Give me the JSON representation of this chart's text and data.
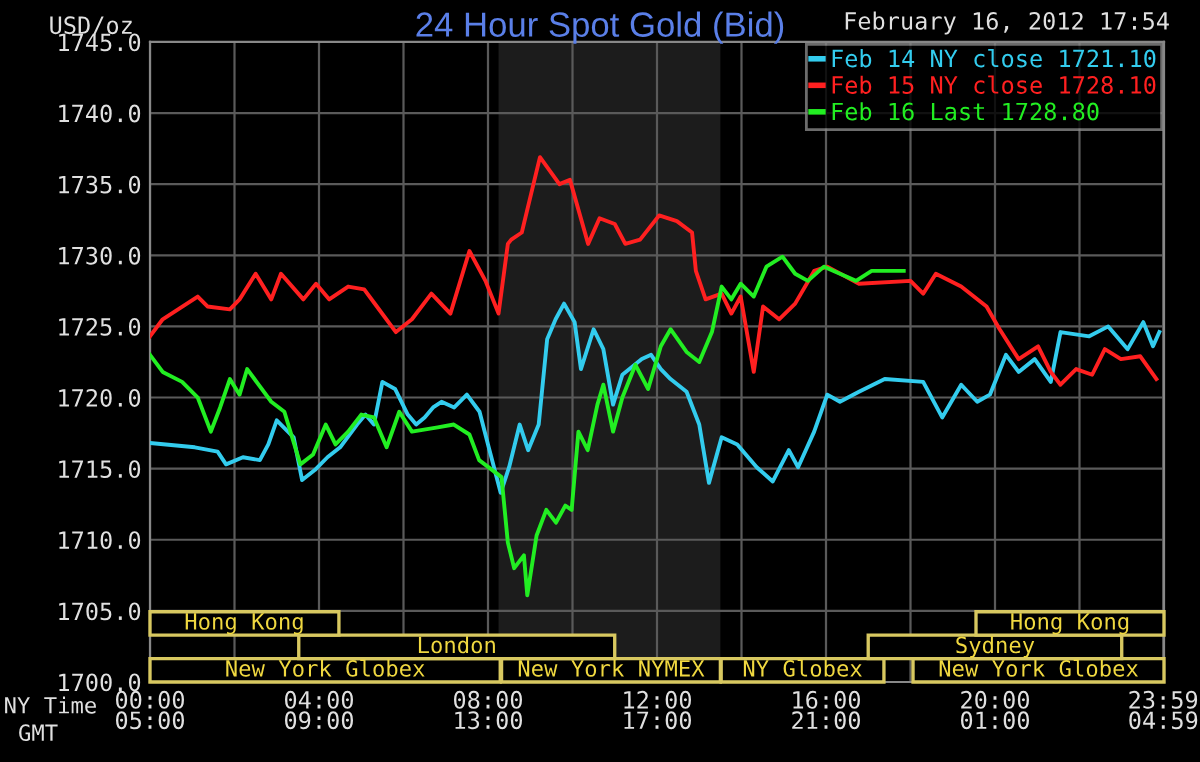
{
  "chart_data": {
    "type": "line",
    "title": "24 Hour Spot Gold (Bid)",
    "subtitle": "February 16, 2012 17:54",
    "ylabel": "USD/oz",
    "annotations": [
      "NY Time",
      "GMT",
      "New York Globex",
      "New York NYMEX",
      "NY Globex",
      "New York Globex",
      "London",
      "Sydney",
      "Hong Kong",
      "Hong Kong"
    ],
    "xlim": [
      0,
      24
    ],
    "xticks": [
      {
        "value": 0,
        "label": "00:00"
      },
      {
        "value": 2,
        "label": null
      },
      {
        "value": 4,
        "label": "04:00"
      },
      {
        "value": 6,
        "label": null
      },
      {
        "value": 8,
        "label": "08:00"
      },
      {
        "value": 10,
        "label": null
      },
      {
        "value": 12,
        "label": "12:00"
      },
      {
        "value": 14,
        "label": null
      },
      {
        "value": 16,
        "label": "16:00"
      },
      {
        "value": 18,
        "label": null
      },
      {
        "value": 20,
        "label": "20:00"
      },
      {
        "value": 22,
        "label": null
      },
      {
        "value": 23.98,
        "label": "23:59"
      }
    ],
    "x2lim": [
      "2012-02-16T05:00",
      "2012-02-17T05:00"
    ],
    "x2ticks": [
      {
        "value": "2012-02-16T05:00",
        "label": "05:00"
      },
      {
        "value": "2012-02-16T09:00",
        "label": "09:00"
      },
      {
        "value": "2012-02-16T13:00",
        "label": "13:00"
      },
      {
        "value": "2012-02-16T17:00",
        "label": "17:00"
      },
      {
        "value": "2012-02-16T21:00",
        "label": "21:00"
      },
      {
        "value": "2012-02-17T01:00",
        "label": "01:00"
      },
      {
        "value": "2012-02-17T04:59",
        "label": "04:59"
      }
    ],
    "ylim": [
      1700,
      1745
    ],
    "yticks": [
      {
        "value": 1700,
        "label": "1700.0"
      },
      {
        "value": 1705,
        "label": "1705.0"
      },
      {
        "value": 1710,
        "label": "1710.0"
      },
      {
        "value": 1715,
        "label": "1715.0"
      },
      {
        "value": 1720,
        "label": "1720.0"
      },
      {
        "value": 1725,
        "label": "1725.0"
      },
      {
        "value": 1730,
        "label": "1730.0"
      },
      {
        "value": 1735,
        "label": "1735.0"
      },
      {
        "value": 1740,
        "label": "1740.0"
      },
      {
        "value": 1745,
        "label": "1745.0"
      }
    ],
    "grid": true,
    "legend": "top right",
    "marker": "none",
    "line_style": "solid",
    "bands": [
      {
        "axis": "x",
        "from": 8.25,
        "to": 13.5,
        "color": "#1c1c1c"
      }
    ],
    "series": [
      {
        "name": "Feb 14 NY close 1721.10",
        "color": "#33ccee",
        "x": [
          0,
          1.06,
          1.6,
          1.8,
          2.2,
          2.6,
          2.8,
          3.0,
          3.4,
          3.6,
          3.9,
          4.2,
          4.5,
          4.9,
          5.1,
          5.3,
          5.5,
          5.8,
          6.1,
          6.3,
          6.5,
          6.7,
          6.9,
          7.2,
          7.5,
          7.8,
          8.0,
          8.3,
          8.5,
          8.75,
          8.95,
          9.2,
          9.4,
          9.6,
          9.8,
          10.05,
          10.2,
          10.5,
          10.73,
          10.96,
          11.18,
          11.64,
          11.86,
          12.09,
          12.32,
          12.7,
          13.0,
          13.23,
          13.53,
          13.9,
          14.36,
          14.74,
          15.12,
          15.34,
          15.72,
          16.03,
          16.33,
          16.78,
          17.39,
          18.3,
          18.75,
          19.2,
          19.58,
          19.88,
          20.26,
          20.56,
          20.94,
          21.32,
          21.55,
          22.23,
          22.68,
          23.14,
          23.51,
          23.74,
          23.89
        ],
        "values": [
          1716.8,
          1716.5,
          1716.2,
          1715.3,
          1715.8,
          1715.6,
          1716.7,
          1718.4,
          1717.2,
          1714.2,
          1714.9,
          1715.8,
          1716.5,
          1718.1,
          1718.8,
          1718.1,
          1721.1,
          1720.6,
          1718.8,
          1718.1,
          1718.6,
          1719.3,
          1719.7,
          1719.3,
          1720.2,
          1719.0,
          1716.7,
          1713.3,
          1715.1,
          1718.1,
          1716.3,
          1718.1,
          1724.1,
          1725.5,
          1726.6,
          1725.3,
          1722.0,
          1724.8,
          1723.4,
          1719.5,
          1721.6,
          1722.7,
          1723.0,
          1722.0,
          1721.3,
          1720.4,
          1718.1,
          1714.0,
          1717.2,
          1716.7,
          1715.1,
          1714.1,
          1716.3,
          1715.1,
          1717.6,
          1720.2,
          1719.7,
          1720.4,
          1721.3,
          1721.1,
          1718.6,
          1720.9,
          1719.7,
          1720.2,
          1723.0,
          1721.8,
          1722.7,
          1721.1,
          1724.6,
          1724.3,
          1725.0,
          1723.4,
          1725.3,
          1723.6,
          1724.6
        ]
      },
      {
        "name": "Feb 15 NY close 1728.10",
        "color": "#ff2020",
        "x": [
          0,
          0.3,
          1.13,
          1.36,
          1.89,
          2.12,
          2.5,
          2.87,
          3.1,
          3.63,
          3.93,
          4.24,
          4.69,
          5.07,
          5.37,
          5.82,
          6.2,
          6.66,
          7.11,
          7.56,
          7.94,
          8.25,
          8.47,
          8.55,
          8.8,
          9.23,
          9.69,
          9.94,
          10.37,
          10.64,
          11.0,
          11.25,
          11.6,
          12.05,
          12.47,
          12.83,
          12.92,
          13.15,
          13.53,
          13.76,
          13.98,
          14.29,
          14.51,
          14.89,
          15.27,
          15.72,
          16.03,
          16.78,
          18.0,
          18.3,
          18.6,
          19.2,
          19.8,
          20.11,
          20.56,
          21.02,
          21.32,
          21.55,
          21.92,
          22.3,
          22.6,
          22.98,
          23.44,
          23.82
        ],
        "values": [
          1724.3,
          1725.5,
          1727.1,
          1726.4,
          1726.2,
          1726.9,
          1728.7,
          1726.9,
          1728.7,
          1726.9,
          1728.0,
          1726.9,
          1727.8,
          1727.6,
          1726.4,
          1724.6,
          1725.5,
          1727.3,
          1725.9,
          1730.3,
          1728.2,
          1725.9,
          1730.8,
          1731.1,
          1731.6,
          1736.9,
          1735.0,
          1735.3,
          1730.8,
          1732.6,
          1732.2,
          1730.8,
          1731.1,
          1732.8,
          1732.4,
          1731.6,
          1728.9,
          1726.9,
          1727.3,
          1725.9,
          1727.1,
          1721.8,
          1726.4,
          1725.5,
          1726.6,
          1728.9,
          1729.2,
          1728.0,
          1728.2,
          1727.3,
          1728.7,
          1727.8,
          1726.4,
          1724.8,
          1722.7,
          1723.6,
          1721.8,
          1720.9,
          1722.0,
          1721.6,
          1723.4,
          1722.7,
          1722.9,
          1721.3
        ]
      },
      {
        "name": "Feb 16 Last 1728.80",
        "color": "#22ee22",
        "x": [
          0,
          0.3,
          0.76,
          1.13,
          1.44,
          1.66,
          1.89,
          2.12,
          2.3,
          2.57,
          2.87,
          3.18,
          3.56,
          3.86,
          4.16,
          4.39,
          4.69,
          5.0,
          5.3,
          5.6,
          5.9,
          6.2,
          6.81,
          7.19,
          7.56,
          7.79,
          8.32,
          8.47,
          8.62,
          8.85,
          8.93,
          9.15,
          9.38,
          9.61,
          9.83,
          9.98,
          10.14,
          10.36,
          10.59,
          10.73,
          10.96,
          11.18,
          11.49,
          11.79,
          12.09,
          12.32,
          12.7,
          13.0,
          13.3,
          13.53,
          13.76,
          13.98,
          14.29,
          14.59,
          14.97,
          15.27,
          15.57,
          15.95,
          16.33,
          16.71,
          17.08,
          17.84
        ],
        "values": [
          1723.0,
          1721.8,
          1721.1,
          1720.0,
          1717.6,
          1719.3,
          1721.3,
          1720.2,
          1722.0,
          1720.9,
          1719.7,
          1719.0,
          1715.3,
          1716.0,
          1718.1,
          1716.7,
          1717.6,
          1718.8,
          1718.6,
          1716.5,
          1719.0,
          1717.6,
          1717.9,
          1718.1,
          1717.4,
          1715.6,
          1714.4,
          1709.8,
          1708.0,
          1708.9,
          1706.1,
          1710.3,
          1712.1,
          1711.2,
          1712.4,
          1712.1,
          1717.6,
          1716.3,
          1719.5,
          1720.9,
          1717.6,
          1720.0,
          1722.3,
          1720.6,
          1723.6,
          1724.8,
          1723.2,
          1722.5,
          1724.6,
          1727.8,
          1726.9,
          1728.0,
          1727.1,
          1729.2,
          1729.9,
          1728.7,
          1728.2,
          1729.2,
          1728.7,
          1728.2,
          1728.9,
          1728.9
        ]
      }
    ]
  }
}
